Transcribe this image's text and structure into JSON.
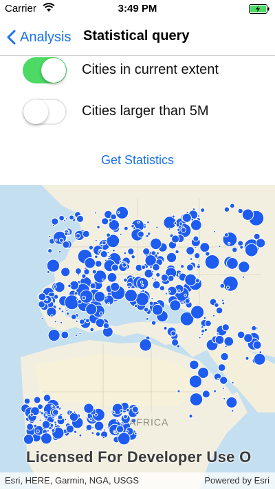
{
  "status_bar": {
    "carrier": "Carrier",
    "time": "3:49 PM",
    "wifi_icon": "wifi-icon",
    "battery_icon": "battery-charging-icon",
    "battery_color": "#4cd964"
  },
  "nav": {
    "back_label": "Analysis",
    "title": "Statistical query",
    "accent_color": "#1a73e8"
  },
  "options": [
    {
      "label": "Cities in current extent",
      "enabled": true
    },
    {
      "label": "Cities larger than 5M",
      "enabled": false
    }
  ],
  "get_statistics_label": "Get Statistics",
  "map": {
    "region_label": "AFRICA",
    "license_text": "Licensed For Developer Use O",
    "attribution_left": "Esri, HERE, Garmin, NGA, USGS",
    "attribution_right": "Powered by Esri",
    "marker_color": "#1e5cf0",
    "ocean_color": "#c4dff0",
    "land_color": "#f2efe0"
  }
}
